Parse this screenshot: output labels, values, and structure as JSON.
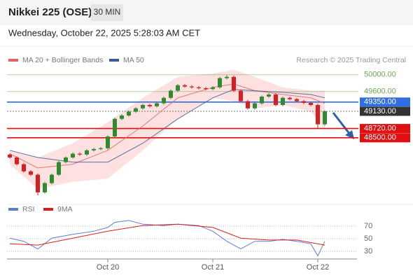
{
  "header": {
    "title": "Nikkei 225 (OSE)",
    "interval": "30 MIN",
    "timestamp": "Wednesday, October 22, 2025 5:28:03 AM CET"
  },
  "chart_data": [
    {
      "type": "candlestick",
      "copyright": "Research © 2025 Trading Central",
      "categories": [
        null,
        null,
        null,
        null,
        null,
        null,
        null,
        null,
        null,
        null,
        null,
        null,
        null,
        null,
        "Oct 20",
        null,
        null,
        null,
        null,
        null,
        null,
        null,
        null,
        null,
        null,
        null,
        null,
        null,
        null,
        "Oct 21",
        null,
        null,
        null,
        null,
        null,
        null,
        null,
        null,
        null,
        null,
        null,
        null,
        null,
        null,
        "Oct 22",
        null
      ],
      "open": [
        48100,
        48030,
        47870,
        47700,
        47620,
        47200,
        47420,
        47620,
        47920,
        48030,
        48120,
        48100,
        48200,
        48230,
        48250,
        48530,
        48950,
        49030,
        49120,
        49200,
        49280,
        49250,
        49320,
        49450,
        49620,
        49750,
        49720,
        49700,
        49680,
        49660,
        49700,
        49920,
        49950,
        49620,
        49370,
        49200,
        49320,
        49480,
        49530,
        49280,
        49450,
        49420,
        49370,
        49330,
        49280,
        48820
      ],
      "high": [
        48130,
        48060,
        47900,
        47730,
        47650,
        47450,
        47650,
        47950,
        48060,
        48150,
        48150,
        48230,
        48260,
        48280,
        48560,
        48980,
        49060,
        49150,
        49230,
        49310,
        49310,
        49350,
        49480,
        49650,
        49780,
        49780,
        49750,
        49730,
        49710,
        49730,
        49950,
        49990,
        49980,
        49650,
        49400,
        49350,
        49510,
        49560,
        49560,
        49480,
        49480,
        49450,
        49400,
        49360,
        49310,
        49160
      ],
      "low": [
        48000,
        47840,
        47670,
        47590,
        47130,
        47170,
        47390,
        47590,
        47890,
        48000,
        48070,
        48070,
        48170,
        48200,
        48220,
        48500,
        48920,
        49000,
        49090,
        49170,
        49220,
        49220,
        49290,
        49420,
        49590,
        49690,
        49670,
        49650,
        49630,
        49630,
        49670,
        49890,
        49590,
        49340,
        49170,
        49170,
        49290,
        49450,
        49250,
        49250,
        49390,
        49340,
        49300,
        49250,
        48720,
        48790
      ],
      "close": [
        48030,
        47870,
        47700,
        47620,
        47200,
        47420,
        47620,
        47920,
        48030,
        48120,
        48100,
        48200,
        48230,
        48250,
        48530,
        48950,
        49030,
        49120,
        49200,
        49280,
        49250,
        49320,
        49450,
        49620,
        49750,
        49720,
        49700,
        49680,
        49660,
        49700,
        49920,
        49950,
        49620,
        49370,
        49200,
        49320,
        49480,
        49530,
        49280,
        49450,
        49420,
        49370,
        49330,
        49280,
        48820,
        49130
      ],
      "up_color": "#2e8b2e",
      "down_color": "#d62020",
      "ylim": [
        47030,
        50780
      ],
      "series": [
        {
          "name": "MA 20 + Bollinger Bands",
          "color": "#e06666",
          "band_color": "#fde0e0",
          "x": [
            0,
            4,
            9,
            14,
            19,
            24,
            29,
            32,
            35,
            39,
            43,
            45
          ],
          "values": [
            48120,
            47780,
            47870,
            48200,
            48780,
            49450,
            49700,
            49780,
            49620,
            49530,
            49450,
            49320
          ],
          "upper": [
            48200,
            48030,
            48370,
            48870,
            49450,
            49950,
            50030,
            50120,
            49950,
            49700,
            49620,
            49620
          ],
          "lower": [
            47870,
            47280,
            47450,
            47530,
            48200,
            48950,
            49450,
            49370,
            49200,
            49280,
            49120,
            48700
          ]
        },
        {
          "name": "MA 50",
          "color": "#3c5a99",
          "x": [
            0,
            4,
            9,
            14,
            19,
            24,
            29,
            32,
            35,
            39,
            43,
            45
          ],
          "values": [
            48200,
            48030,
            47920,
            47920,
            48370,
            48950,
            49450,
            49650,
            49620,
            49580,
            49530,
            49450
          ]
        }
      ],
      "levels": [
        {
          "value": 50000,
          "label": "50000.00",
          "color": "#6aa84f",
          "style": "support"
        },
        {
          "value": 49600,
          "label": "49600.00",
          "color": "#6aa84f",
          "style": "support"
        },
        {
          "value": 49350,
          "label": "49350.00",
          "color": "#2f6fe0",
          "style": "pivot"
        },
        {
          "value": 49130,
          "label": "49130.00",
          "color": "#333333",
          "style": "last"
        },
        {
          "value": 48720,
          "label": "48720.00",
          "color": "#e01010",
          "style": "target"
        },
        {
          "value": 48500,
          "label": "48500.00",
          "color": "#e01010",
          "style": "target"
        }
      ]
    },
    {
      "type": "line",
      "ylim": [
        18,
        90
      ],
      "yticks": [
        70,
        50,
        30
      ],
      "series": [
        {
          "name": "RSI",
          "color": "#5b7fd6",
          "x": [
            0,
            2,
            4,
            6,
            9,
            12,
            14,
            15,
            17,
            19,
            22,
            24,
            27,
            29,
            31,
            33,
            35,
            37,
            39,
            41,
            43,
            44,
            45
          ],
          "values": [
            51,
            46,
            34,
            51,
            57,
            62,
            68,
            76,
            79,
            73,
            71,
            73,
            71,
            62,
            46,
            34,
            46,
            46,
            49,
            46,
            42,
            23,
            46
          ]
        },
        {
          "name": "9MA",
          "color": "#d62020",
          "x": [
            0,
            4,
            9,
            14,
            19,
            24,
            29,
            33,
            37,
            41,
            45
          ],
          "values": [
            42,
            40,
            51,
            62,
            71,
            73,
            68,
            51,
            48,
            48,
            40
          ]
        }
      ]
    }
  ]
}
